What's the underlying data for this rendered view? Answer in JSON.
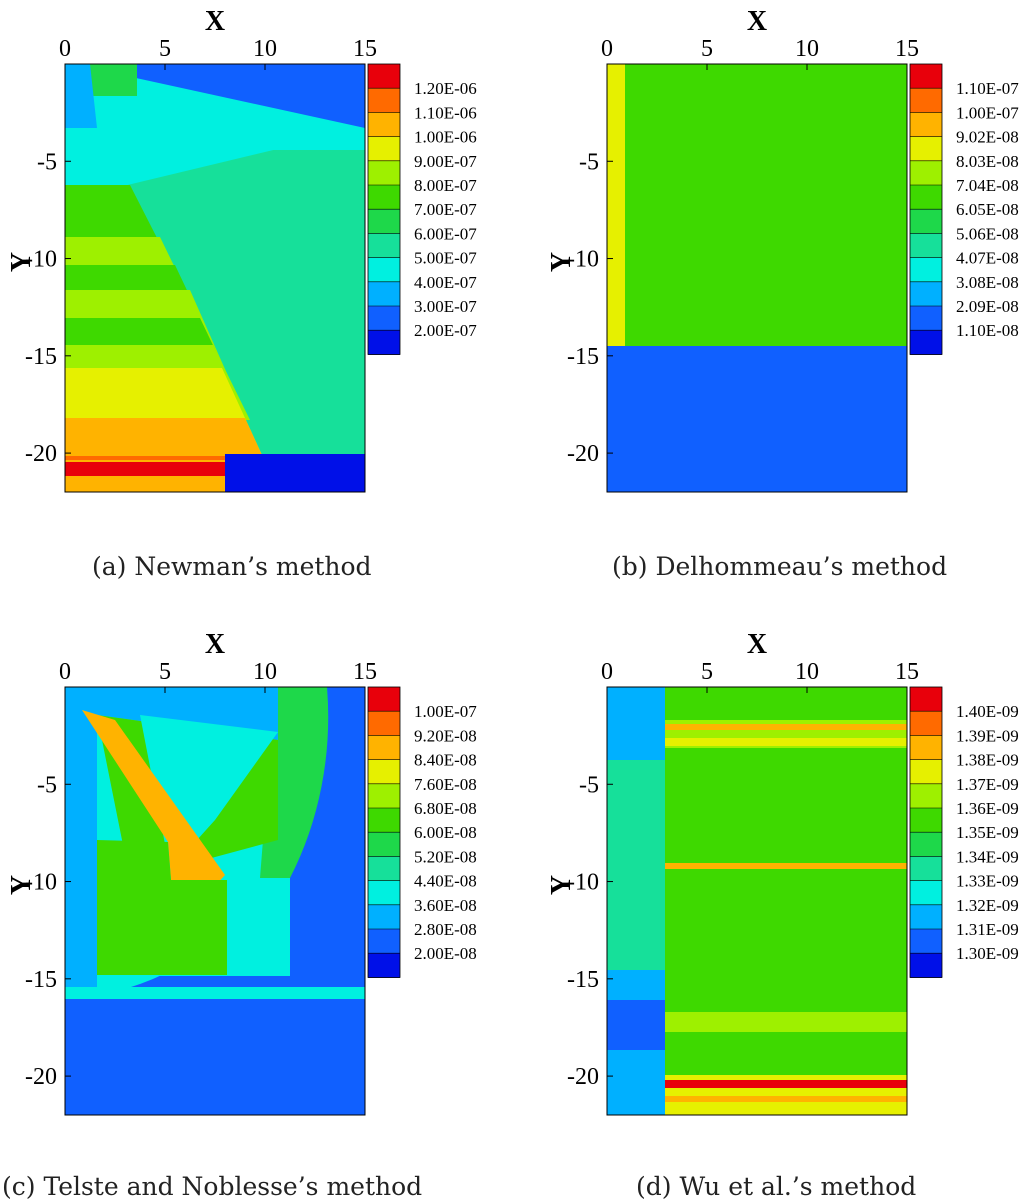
{
  "figure": {
    "captions": [
      "(a) Newman’s method",
      "(b) Delhommeau’s method",
      "(c) Telste and Noblesse’s method",
      "(d) Wu et al.’s method"
    ]
  },
  "chart_data": [
    {
      "type": "heatmap",
      "caption": "(a) Newman’s method",
      "xlabel": "X",
      "ylabel": "Y",
      "xlim": [
        0,
        15
      ],
      "ylim": [
        -22,
        0
      ],
      "xticks": [
        0,
        5,
        10,
        15
      ],
      "yticks": [
        -5,
        -10,
        -15,
        -20
      ],
      "colorbar": {
        "levels": [
          "1.20E-06",
          "1.10E-06",
          "1.00E-06",
          "9.00E-07",
          "8.00E-07",
          "7.00E-07",
          "6.00E-07",
          "5.00E-07",
          "4.00E-07",
          "3.00E-07",
          "2.00E-07"
        ],
        "colors": [
          "#e8000b",
          "#ff6a00",
          "#ffb300",
          "#e6f000",
          "#9ef000",
          "#3ed900",
          "#1ed84a",
          "#16e09a",
          "#00f0e0",
          "#00b0ff",
          "#1060ff",
          "#0010e8"
        ]
      }
    },
    {
      "type": "heatmap",
      "caption": "(b) Delhommeau’s method",
      "xlabel": "X",
      "ylabel": "Y",
      "xlim": [
        0,
        15
      ],
      "ylim": [
        -22,
        0
      ],
      "xticks": [
        0,
        5,
        10,
        15
      ],
      "yticks": [
        -5,
        -10,
        -15,
        -20
      ],
      "colorbar": {
        "levels": [
          "1.10E-07",
          "1.00E-07",
          "9.02E-08",
          "8.03E-08",
          "7.04E-08",
          "6.05E-08",
          "5.06E-08",
          "4.07E-08",
          "3.08E-08",
          "2.09E-08",
          "1.10E-08"
        ],
        "colors": [
          "#e8000b",
          "#ff6a00",
          "#ffb300",
          "#e6f000",
          "#9ef000",
          "#3ed900",
          "#1ed84a",
          "#16e09a",
          "#00f0e0",
          "#00b0ff",
          "#1060ff",
          "#0010e8"
        ]
      }
    },
    {
      "type": "heatmap",
      "caption": "(c) Telste and Noblesse’s method",
      "xlabel": "X",
      "ylabel": "Y",
      "xlim": [
        0,
        15
      ],
      "ylim": [
        -22,
        0
      ],
      "xticks": [
        0,
        5,
        10,
        15
      ],
      "yticks": [
        -5,
        -10,
        -15,
        -20
      ],
      "colorbar": {
        "levels": [
          "1.00E-07",
          "9.20E-08",
          "8.40E-08",
          "7.60E-08",
          "6.80E-08",
          "6.00E-08",
          "5.20E-08",
          "4.40E-08",
          "3.60E-08",
          "2.80E-08",
          "2.00E-08"
        ],
        "colors": [
          "#e8000b",
          "#ff6a00",
          "#ffb300",
          "#e6f000",
          "#9ef000",
          "#3ed900",
          "#1ed84a",
          "#16e09a",
          "#00f0e0",
          "#00b0ff",
          "#1060ff",
          "#0010e8"
        ]
      }
    },
    {
      "type": "heatmap",
      "caption": "(d) Wu et al.’s method",
      "xlabel": "X",
      "ylabel": "Y",
      "xlim": [
        0,
        15
      ],
      "ylim": [
        -22,
        0
      ],
      "xticks": [
        0,
        5,
        10,
        15
      ],
      "yticks": [
        -5,
        -10,
        -15,
        -20
      ],
      "colorbar": {
        "levels": [
          "1.40E-09",
          "1.39E-09",
          "1.38E-09",
          "1.37E-09",
          "1.36E-09",
          "1.35E-09",
          "1.34E-09",
          "1.33E-09",
          "1.32E-09",
          "1.31E-09",
          "1.30E-09"
        ],
        "colors": [
          "#e8000b",
          "#ff6a00",
          "#ffb300",
          "#e6f000",
          "#9ef000",
          "#3ed900",
          "#1ed84a",
          "#16e09a",
          "#00f0e0",
          "#00b0ff",
          "#1060ff",
          "#0010e8"
        ]
      }
    }
  ]
}
